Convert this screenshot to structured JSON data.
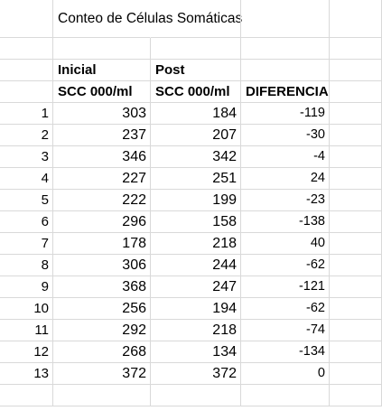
{
  "sheet": {
    "title": "Conteo de Células Somáticas",
    "headers": {
      "col_b_row1": "Inicial",
      "col_c_row1": "Post",
      "col_b_row2": "SCC 000/ml",
      "col_c_row2": "SCC 000/ml",
      "col_d_row2": "DIFERENCIA"
    },
    "rows": [
      {
        "index": "1",
        "initial": "303",
        "post": "184",
        "difference": "-119"
      },
      {
        "index": "2",
        "initial": "237",
        "post": "207",
        "difference": "-30"
      },
      {
        "index": "3",
        "initial": "346",
        "post": "342",
        "difference": "-4"
      },
      {
        "index": "4",
        "initial": "227",
        "post": "251",
        "difference": "24"
      },
      {
        "index": "5",
        "initial": "222",
        "post": "199",
        "difference": "-23"
      },
      {
        "index": "6",
        "initial": "296",
        "post": "158",
        "difference": "-138"
      },
      {
        "index": "7",
        "initial": "178",
        "post": "218",
        "difference": "40"
      },
      {
        "index": "8",
        "initial": "306",
        "post": "244",
        "difference": "-62"
      },
      {
        "index": "9",
        "initial": "368",
        "post": "247",
        "difference": "-121"
      },
      {
        "index": "10",
        "initial": "256",
        "post": "194",
        "difference": "-62"
      },
      {
        "index": "11",
        "initial": "292",
        "post": "218",
        "difference": "-74"
      },
      {
        "index": "12",
        "initial": "268",
        "post": "134",
        "difference": "-134"
      },
      {
        "index": "13",
        "initial": "372",
        "post": "372",
        "difference": "0"
      }
    ]
  }
}
